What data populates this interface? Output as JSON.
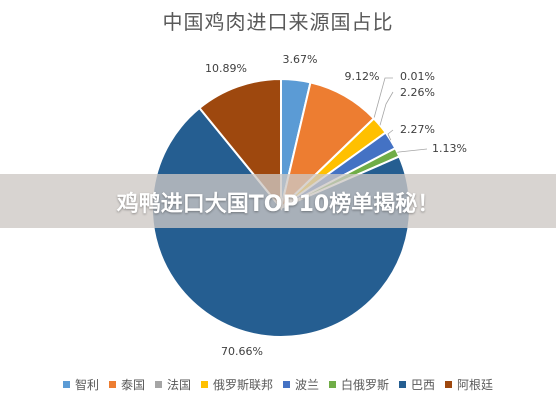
{
  "chart_data": {
    "type": "pie",
    "title": "中国鸡肉进口来源国占比",
    "legend_position": "bottom",
    "slices": [
      {
        "name": "智利",
        "value": 3.67,
        "label": "3.67%",
        "color": "#5b9bd5"
      },
      {
        "name": "泰国",
        "value": 9.12,
        "label": "9.12%",
        "color": "#ed7d31"
      },
      {
        "name": "法国",
        "value": 0.01,
        "label": "0.01%",
        "color": "#a5a5a5"
      },
      {
        "name": "俄罗斯联邦",
        "value": 2.26,
        "label": "2.26%",
        "color": "#ffc000"
      },
      {
        "name": "波兰",
        "value": 2.27,
        "label": "2.27%",
        "color": "#4472c4"
      },
      {
        "name": "白俄罗斯",
        "value": 1.13,
        "label": "1.13%",
        "color": "#70ad47"
      },
      {
        "name": "巴西",
        "value": 70.66,
        "label": "70.66%",
        "color": "#255e91"
      },
      {
        "name": "阿根廷",
        "value": 10.89,
        "label": "10.89%",
        "color": "#9e480e"
      }
    ]
  },
  "overlay": {
    "banner_text": "鸡鸭进口大国TOP10榜单揭秘！"
  }
}
